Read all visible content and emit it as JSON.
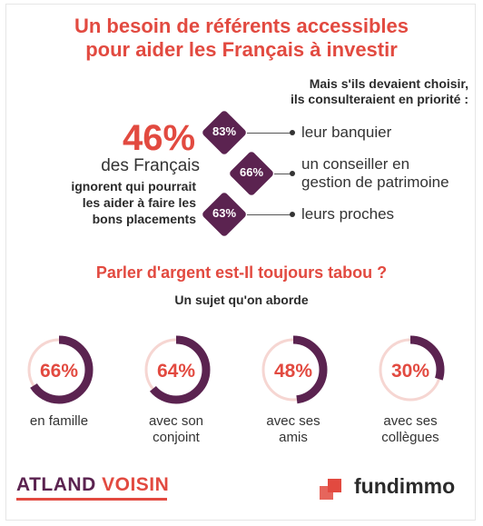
{
  "title_line1": "Un besoin de référents accessibles",
  "title_line2": "pour aider les Français à investir",
  "choose": {
    "header_line1": "Mais s'ils devaient choisir,",
    "header_line2": "ils consulteraient en priorité :",
    "items": [
      {
        "pct_label": "83%",
        "label_line1": "leur banquier",
        "label_line2": ""
      },
      {
        "pct_label": "66%",
        "label_line1": "un conseiller en",
        "label_line2": "gestion de patrimoine"
      },
      {
        "pct_label": "63%",
        "label_line1": "leurs proches",
        "label_line2": ""
      }
    ]
  },
  "headline": {
    "pct": "46%",
    "des": "des Français",
    "desc_line1": "ignorent qui pourrait",
    "desc_line2": "les aider à faire les",
    "desc_line3": "bons placements"
  },
  "section2_title": "Parler d'argent est-Il toujours tabou ?",
  "section2_subtitle": "Un sujet qu'on aborde",
  "chart_data": [
    {
      "type": "bar",
      "title": "Mais s'ils devaient choisir, ils consulteraient en priorité :",
      "categories": [
        "leur banquier",
        "un conseiller en gestion de patrimoine",
        "leurs proches"
      ],
      "values": [
        83,
        66,
        63
      ],
      "unit": "%"
    },
    {
      "type": "pie",
      "title": "Un sujet qu'on aborde",
      "categories": [
        "en famille",
        "avec son conjoint",
        "avec ses amis",
        "avec ses collègues"
      ],
      "values": [
        66,
        64,
        48,
        30
      ],
      "unit": "%"
    }
  ],
  "rings": [
    {
      "pct_label": "66%",
      "label_line1": "en famille",
      "label_line2": "",
      "value": 66
    },
    {
      "pct_label": "64%",
      "label_line1": "avec son",
      "label_line2": "conjoint",
      "value": 64
    },
    {
      "pct_label": "48%",
      "label_line1": "avec ses",
      "label_line2": "amis",
      "value": 48
    },
    {
      "pct_label": "30%",
      "label_line1": "avec ses",
      "label_line2": "collègues",
      "value": 30
    }
  ],
  "colors": {
    "accent": "#e24a40",
    "plum": "#5b2350",
    "track": "#f6d6d2"
  },
  "logos": {
    "left_part1": "ATLAND",
    "left_part2": "VOISIN",
    "right": "fundimmo"
  }
}
